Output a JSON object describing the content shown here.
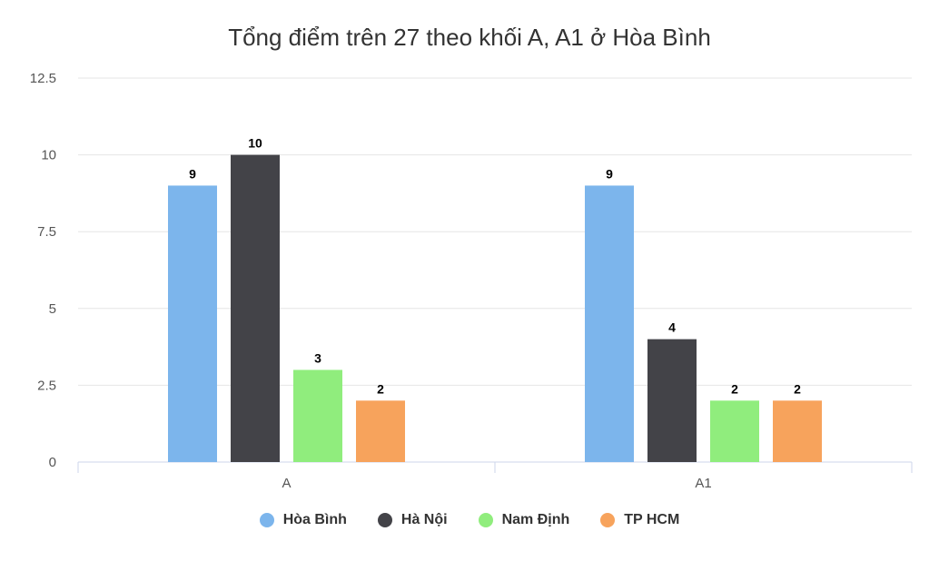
{
  "chart_data": {
    "type": "bar",
    "title": "Tổng điểm trên 27 theo khối A, A1 ở Hòa Bình",
    "xlabel": "",
    "ylabel": "",
    "categories": [
      "A",
      "A1"
    ],
    "ylim": [
      0,
      12.5
    ],
    "yticks": [
      "0",
      "2.5",
      "5",
      "7.5",
      "10",
      "12.5"
    ],
    "grid": true,
    "legend_position": "bottom",
    "series": [
      {
        "name": "Hòa Bình",
        "color": "#7cb5ec",
        "values": [
          9,
          9
        ]
      },
      {
        "name": "Hà Nội",
        "color": "#434348",
        "values": [
          10,
          4
        ]
      },
      {
        "name": "Nam Định",
        "color": "#90ed7d",
        "values": [
          3,
          2
        ]
      },
      {
        "name": "TP HCM",
        "color": "#f7a35c",
        "values": [
          2,
          2
        ]
      }
    ]
  }
}
